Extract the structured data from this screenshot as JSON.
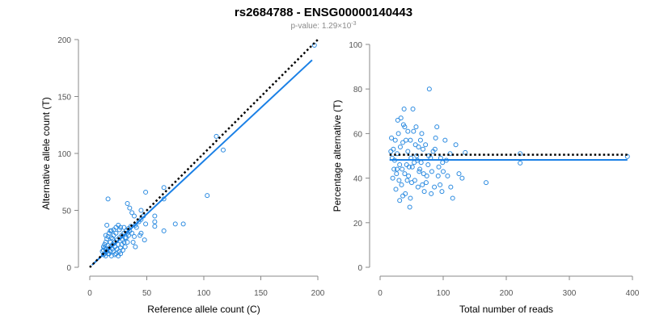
{
  "title": "rs2684788 - ENSG00000140443",
  "subtitle": {
    "prefix": "p-value: 1.29×10",
    "exponent": "-3"
  },
  "colors": {
    "points": "#2a8ae0",
    "fit_line": "#1a80e6",
    "reference_line": "#000000"
  },
  "chart_data": [
    {
      "type": "scatter",
      "xlabel": "Reference allele count (C)",
      "ylabel": "Alternative allele count (T)",
      "xlim": [
        0,
        200
      ],
      "ylim": [
        0,
        200
      ],
      "xticks": [
        0,
        50,
        100,
        150,
        200
      ],
      "yticks": [
        0,
        50,
        100,
        150,
        200
      ],
      "grid": false,
      "reference_line": {
        "style": "dotted",
        "x": [
          0,
          200
        ],
        "y": [
          0,
          200
        ]
      },
      "fit_line": {
        "style": "solid",
        "x": [
          2,
          195
        ],
        "y": [
          2,
          182
        ]
      },
      "points": [
        [
          197,
          195
        ],
        [
          111,
          115
        ],
        [
          117,
          103
        ],
        [
          103,
          63
        ],
        [
          65,
          70
        ],
        [
          49,
          66
        ],
        [
          65,
          60
        ],
        [
          82,
          38
        ],
        [
          75,
          38
        ],
        [
          65,
          32
        ],
        [
          57,
          36
        ],
        [
          57,
          40
        ],
        [
          57,
          45
        ],
        [
          49,
          38
        ],
        [
          47,
          45
        ],
        [
          45,
          42
        ],
        [
          43,
          40
        ],
        [
          41,
          35
        ],
        [
          40,
          37
        ],
        [
          39,
          45
        ],
        [
          37,
          48
        ],
        [
          35,
          52
        ],
        [
          33,
          56
        ],
        [
          45,
          50
        ],
        [
          45,
          30
        ],
        [
          44,
          28
        ],
        [
          48,
          24
        ],
        [
          38,
          22
        ],
        [
          40,
          18
        ],
        [
          33,
          22
        ],
        [
          31,
          18
        ],
        [
          29,
          15
        ],
        [
          27,
          12
        ],
        [
          25,
          10
        ],
        [
          23,
          12
        ],
        [
          21,
          14
        ],
        [
          19,
          10
        ],
        [
          17,
          12
        ],
        [
          15,
          14
        ],
        [
          14,
          10
        ],
        [
          13,
          12
        ],
        [
          12,
          15
        ],
        [
          12,
          18
        ],
        [
          13,
          20
        ],
        [
          14,
          22
        ],
        [
          15,
          25
        ],
        [
          14,
          28
        ],
        [
          16,
          27
        ],
        [
          17,
          30
        ],
        [
          18,
          32
        ],
        [
          20,
          20
        ],
        [
          22,
          22
        ],
        [
          24,
          24
        ],
        [
          26,
          26
        ],
        [
          28,
          28
        ],
        [
          30,
          30
        ],
        [
          32,
          32
        ],
        [
          34,
          34
        ],
        [
          36,
          36
        ],
        [
          15,
          37
        ],
        [
          16,
          60
        ],
        [
          20,
          25
        ],
        [
          22,
          18
        ],
        [
          24,
          16
        ],
        [
          26,
          14
        ],
        [
          28,
          20
        ],
        [
          30,
          22
        ],
        [
          32,
          26
        ],
        [
          34,
          28
        ],
        [
          30,
          35
        ],
        [
          26,
          33
        ],
        [
          23,
          30
        ],
        [
          21,
          28
        ],
        [
          19,
          26
        ],
        [
          18,
          22
        ],
        [
          17,
          17
        ],
        [
          16,
          19
        ],
        [
          15,
          16
        ],
        [
          14,
          16
        ],
        [
          13,
          17
        ],
        [
          12,
          11
        ],
        [
          11,
          14
        ],
        [
          16,
          12
        ],
        [
          18,
          14
        ],
        [
          20,
          16
        ],
        [
          22,
          11
        ],
        [
          27,
          17
        ],
        [
          25,
          20
        ],
        [
          29,
          24
        ],
        [
          31,
          26
        ],
        [
          33,
          30
        ],
        [
          35,
          32
        ],
        [
          37,
          30
        ],
        [
          39,
          27
        ],
        [
          27,
          35
        ],
        [
          23,
          35
        ],
        [
          21,
          33
        ],
        [
          19,
          32
        ],
        [
          25,
          37
        ]
      ]
    },
    {
      "type": "scatter",
      "xlabel": "Total number of reads",
      "ylabel": "Percentage alternative (T)",
      "xlim": [
        0,
        400
      ],
      "ylim": [
        0,
        100
      ],
      "xticks": [
        0,
        100,
        200,
        300,
        400
      ],
      "yticks": [
        0,
        20,
        40,
        60,
        80,
        100
      ],
      "grid": false,
      "reference_line": {
        "style": "dotted",
        "x": [
          15,
          392
        ],
        "y": [
          50.5,
          50.5
        ]
      },
      "fit_line": {
        "style": "solid",
        "x": [
          15,
          392
        ],
        "y": [
          48.2,
          48.2
        ]
      },
      "points": [
        [
          392,
          49.7
        ],
        [
          222,
          51
        ],
        [
          222,
          46.8
        ],
        [
          168,
          38
        ],
        [
          135,
          51.5
        ],
        [
          115,
          31
        ],
        [
          111,
          51
        ],
        [
          105,
          48
        ],
        [
          103,
          57
        ],
        [
          100,
          43
        ],
        [
          98,
          34
        ],
        [
          96,
          49
        ],
        [
          93,
          45
        ],
        [
          90,
          63
        ],
        [
          88,
          58
        ],
        [
          86,
          36
        ],
        [
          84,
          52
        ],
        [
          82,
          43
        ],
        [
          80,
          49
        ],
        [
          78,
          80
        ],
        [
          76,
          46
        ],
        [
          74,
          41
        ],
        [
          72,
          55
        ],
        [
          70,
          34
        ],
        [
          68,
          53
        ],
        [
          66,
          60
        ],
        [
          64,
          57
        ],
        [
          62,
          43
        ],
        [
          60,
          36
        ],
        [
          58,
          50
        ],
        [
          56,
          55
        ],
        [
          54,
          47
        ],
        [
          52,
          71
        ],
        [
          50,
          38
        ],
        [
          49,
          49
        ],
        [
          48,
          57
        ],
        [
          47,
          27
        ],
        [
          46,
          45
        ],
        [
          45,
          41
        ],
        [
          44,
          52
        ],
        [
          43,
          39
        ],
        [
          42,
          46
        ],
        [
          41,
          57
        ],
        [
          40,
          33
        ],
        [
          39,
          42
        ],
        [
          38,
          71
        ],
        [
          37,
          64
        ],
        [
          36,
          56
        ],
        [
          35,
          44
        ],
        [
          34,
          37
        ],
        [
          33,
          67
        ],
        [
          32,
          54
        ],
        [
          31,
          46
        ],
        [
          30,
          39
        ],
        [
          29,
          60
        ],
        [
          28,
          66
        ],
        [
          27,
          51
        ],
        [
          26,
          42
        ],
        [
          25,
          35
        ],
        [
          24,
          57
        ],
        [
          23,
          48
        ],
        [
          22,
          44
        ],
        [
          21,
          53
        ],
        [
          20,
          40
        ],
        [
          19,
          49
        ],
        [
          18,
          58
        ],
        [
          17,
          52
        ],
        [
          53,
          61
        ],
        [
          57,
          63
        ],
        [
          61,
          54
        ],
        [
          65,
          47
        ],
        [
          69,
          42
        ],
        [
          73,
          38
        ],
        [
          77,
          50
        ],
        [
          81,
          33
        ],
        [
          87,
          53
        ],
        [
          92,
          41
        ],
        [
          95,
          37
        ],
        [
          99,
          47
        ],
        [
          107,
          41
        ],
        [
          112,
          36
        ],
        [
          120,
          55
        ],
        [
          125,
          42
        ],
        [
          130,
          40
        ],
        [
          36,
          32
        ],
        [
          31,
          30
        ],
        [
          27,
          44
        ],
        [
          39,
          63
        ],
        [
          44,
          61
        ],
        [
          48,
          31
        ],
        [
          51,
          45
        ],
        [
          55,
          39
        ],
        [
          59,
          48
        ],
        [
          63,
          44
        ],
        [
          67,
          37
        ]
      ]
    }
  ]
}
